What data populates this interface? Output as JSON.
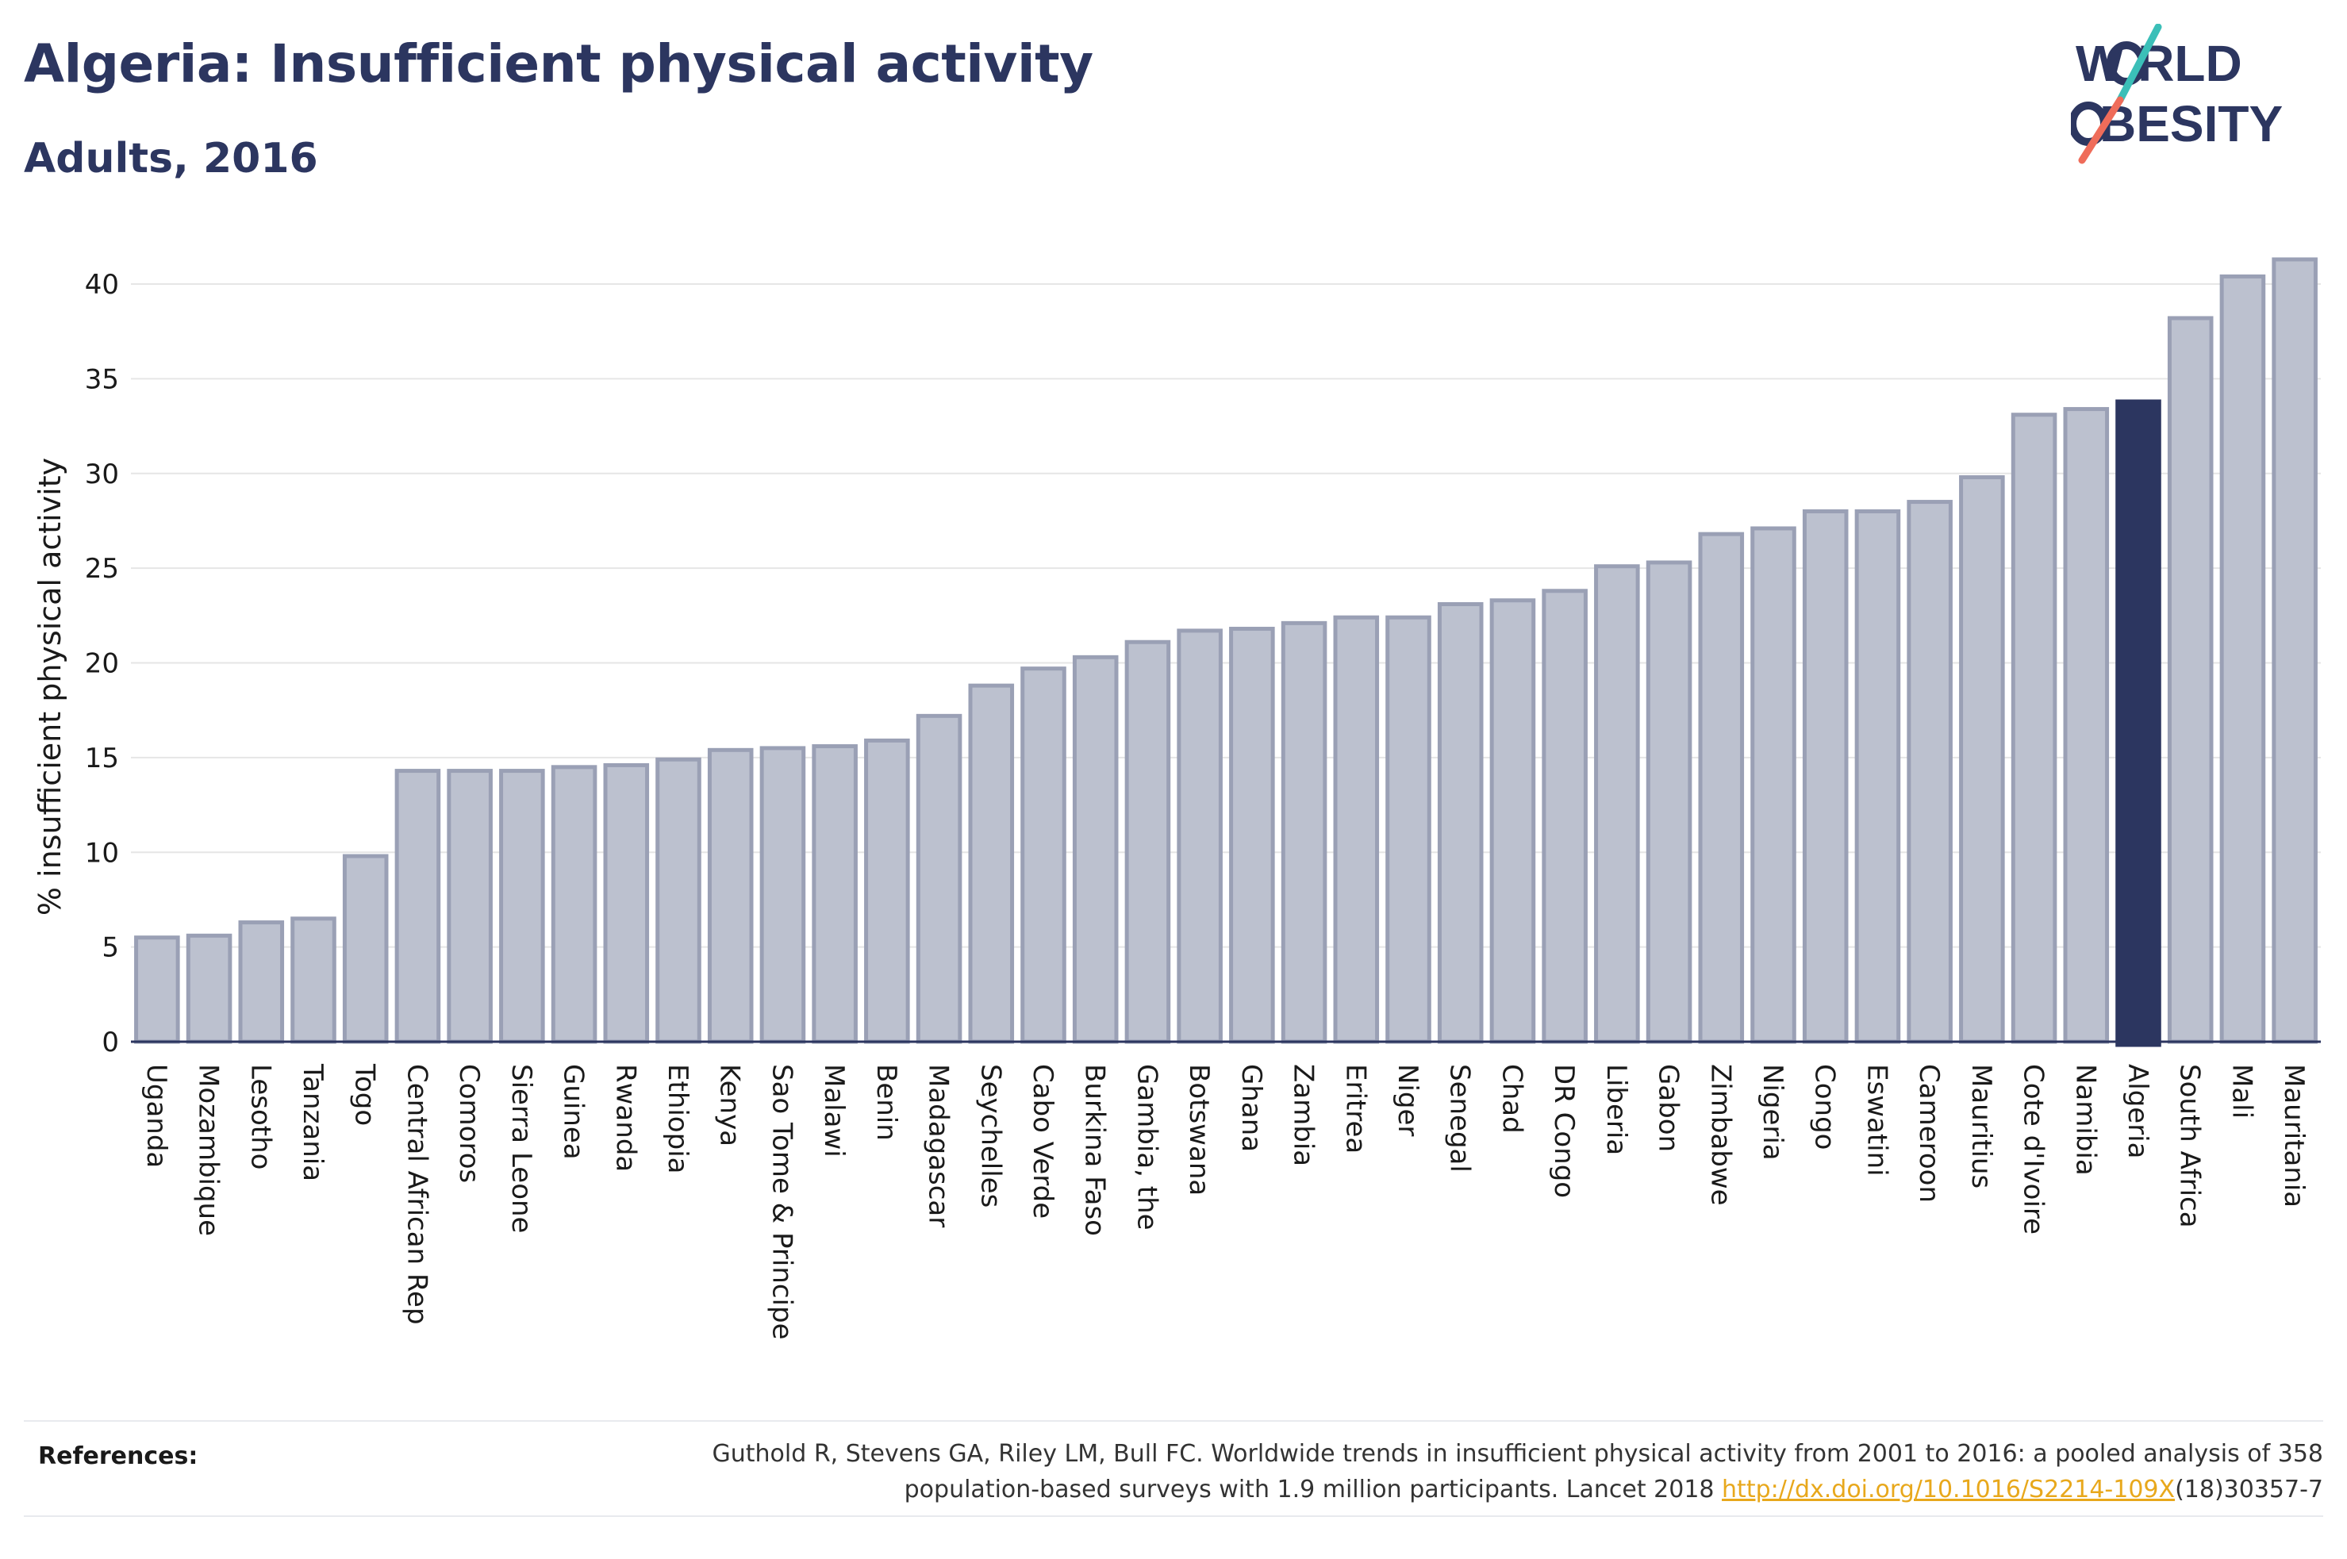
{
  "header": {
    "title": "Algeria: Insufficient physical activity",
    "subtitle": "Adults, 2016"
  },
  "logo": {
    "line1": "W RLD",
    "line2": "BESITY",
    "text": "WORLD OBESITY",
    "colors": {
      "text": "#2c3660",
      "teal": "#3bbfb8",
      "coral": "#ef6c5a"
    }
  },
  "chart_data": {
    "type": "bar",
    "ylabel": "% insufficient physical activity",
    "ylim": [
      0,
      42
    ],
    "yticks": [
      0,
      5,
      10,
      15,
      20,
      25,
      30,
      35,
      40
    ],
    "grid": true,
    "highlight": "Algeria",
    "colors": {
      "bar": "#bcc1cf",
      "bar_edge": "#9aa0b5",
      "highlight": "#2c3660",
      "grid": "#e6e6e6",
      "axis": "#2c3660"
    },
    "categories": [
      "Uganda",
      "Mozambique",
      "Lesotho",
      "Tanzania",
      "Togo",
      "Central African Rep",
      "Comoros",
      "Sierra Leone",
      "Guinea",
      "Rwanda",
      "Ethiopia",
      "Kenya",
      "Sao Tome & Principe",
      "Malawi",
      "Benin",
      "Madagascar",
      "Seychelles",
      "Cabo Verde",
      "Burkina Faso",
      "Gambia, the",
      "Botswana",
      "Ghana",
      "Zambia",
      "Eritrea",
      "Niger",
      "Senegal",
      "Chad",
      "DR Congo",
      "Liberia",
      "Gabon",
      "Zimbabwe",
      "Nigeria",
      "Congo",
      "Eswatini",
      "Cameroon",
      "Mauritius",
      "Cote d'Ivoire",
      "Namibia",
      "Algeria",
      "South Africa",
      "Mali",
      "Mauritania"
    ],
    "values": [
      5.5,
      5.6,
      6.3,
      6.5,
      9.8,
      14.3,
      14.3,
      14.3,
      14.5,
      14.6,
      14.9,
      15.4,
      15.5,
      15.6,
      15.9,
      17.2,
      18.8,
      19.7,
      20.3,
      21.1,
      21.7,
      21.8,
      22.1,
      22.4,
      22.4,
      23.1,
      23.3,
      23.8,
      25.1,
      25.3,
      26.8,
      27.1,
      28.0,
      28.0,
      28.5,
      29.8,
      33.1,
      33.4,
      33.8,
      38.2,
      40.4,
      41.3
    ]
  },
  "references": {
    "label": "References:",
    "line1": "Guthold R, Stevens GA, Riley LM, Bull FC. Worldwide trends in insufficient physical activity from 2001 to 2016: a pooled analysis of 358",
    "line2_prefix": "population-based surveys with 1.9 million participants. Lancet 2018 ",
    "link_text": "http://dx.doi.org/10.1016/S2214-109X",
    "line2_suffix": "(18)30357-7"
  }
}
